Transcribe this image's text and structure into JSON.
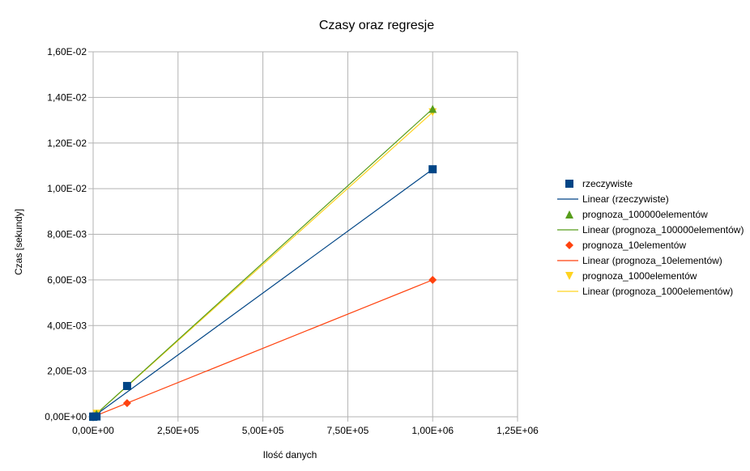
{
  "chart_data": {
    "type": "scatter",
    "title": "Czasy oraz regresje",
    "xlabel": "Ilość danych",
    "ylabel": "Czas [sekundy]",
    "xlim": [
      0,
      1250000
    ],
    "ylim": [
      0,
      0.016
    ],
    "x_ticks": [
      0,
      250000,
      500000,
      750000,
      1000000,
      1250000
    ],
    "x_tick_labels": [
      "0,00E+00",
      "2,50E+05",
      "5,00E+05",
      "7,50E+05",
      "1,00E+06",
      "1,25E+06"
    ],
    "y_ticks": [
      0,
      0.002,
      0.004,
      0.006,
      0.008,
      0.01,
      0.012,
      0.014,
      0.016
    ],
    "y_tick_labels": [
      "0,00E+00",
      "2,00E-03",
      "4,00E-03",
      "6,00E-03",
      "8,00E-03",
      "1,00E-02",
      "1,20E-02",
      "1,40E-02",
      "1,60E-02"
    ],
    "grid": true,
    "legend_position": "right",
    "series": [
      {
        "name": "rzeczywiste",
        "marker": "square",
        "color": "#004586",
        "x": [
          100,
          1000,
          10000,
          100000,
          1000000
        ],
        "y": [
          1.1e-06,
          1.06e-05,
          1.35e-05,
          0.00135,
          0.01085
        ],
        "trend_name": "Linear (rzeczywiste)",
        "trend_color": "#004586",
        "trend": [
          [
            0,
            0.0
          ],
          [
            1000000,
            0.01085
          ]
        ]
      },
      {
        "name": "prognoza_100000elementów",
        "marker": "triangle-up",
        "color": "#579D1C",
        "x": [
          100,
          1000,
          10000,
          100000,
          1000000
        ],
        "y": [
          1.35e-06,
          1.35e-05,
          0.000135,
          0.00135,
          0.0135
        ],
        "trend_name": "Linear (prognoza_100000elementów)",
        "trend_color": "#579D1C",
        "trend": [
          [
            0,
            0.0
          ],
          [
            1000000,
            0.0135
          ]
        ]
      },
      {
        "name": "prognoza_10elementów",
        "marker": "diamond",
        "color": "#FF420E",
        "x": [
          100,
          1000,
          10000,
          100000,
          1000000
        ],
        "y": [
          6e-07,
          6e-06,
          6e-05,
          0.0006,
          0.006
        ],
        "trend_name": "Linear (prognoza_10elementów)",
        "trend_color": "#FF420E",
        "trend": [
          [
            0,
            0.0
          ],
          [
            1000000,
            0.006
          ]
        ]
      },
      {
        "name": "prognoza_1000elementów",
        "marker": "triangle-down",
        "color": "#FFD320",
        "x": [
          100,
          1000,
          10000,
          100000,
          1000000
        ],
        "y": [
          1.335e-06,
          1.335e-05,
          0.0001335,
          0.001335,
          0.01335
        ],
        "trend_name": "Linear (prognoza_1000elementów)",
        "trend_color": "#FFD320",
        "trend": [
          [
            0,
            0.0
          ],
          [
            1000000,
            0.01335
          ]
        ]
      }
    ],
    "colors": {
      "grid": "#b3b3b3",
      "axis": "#b3b3b3"
    }
  }
}
